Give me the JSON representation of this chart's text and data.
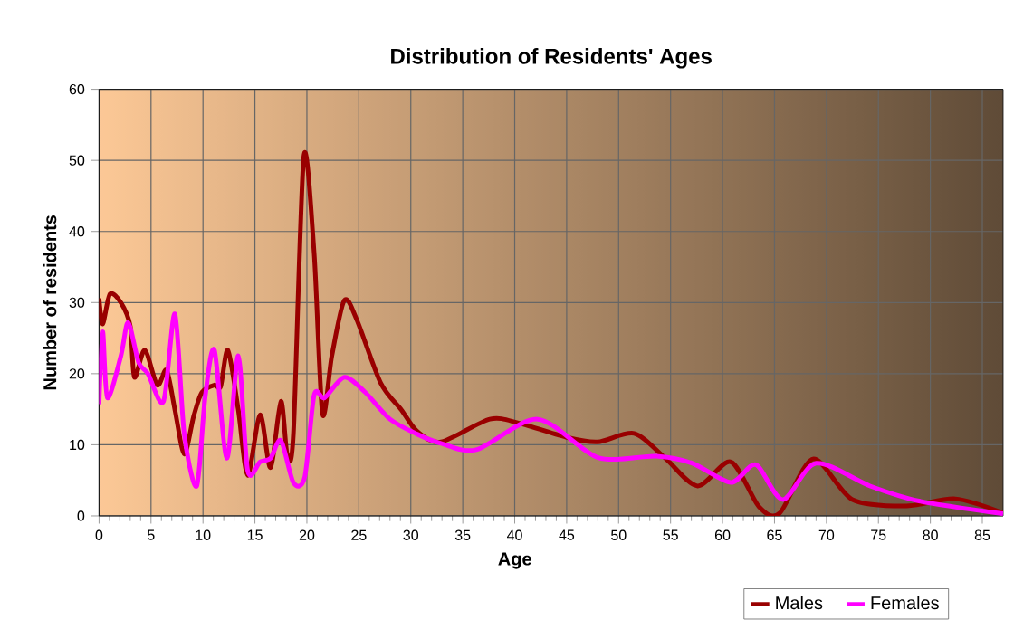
{
  "chart_data": {
    "type": "line",
    "title": "Distribution of Residents' Ages",
    "xlabel": "Age",
    "ylabel": "Number of residents",
    "xlim": [
      0,
      87
    ],
    "ylim": [
      0,
      60
    ],
    "xticks": [
      0,
      5,
      10,
      15,
      20,
      25,
      30,
      35,
      40,
      45,
      50,
      55,
      60,
      65,
      70,
      75,
      80,
      85
    ],
    "yticks": [
      0,
      10,
      20,
      30,
      40,
      50,
      60
    ],
    "grid": true,
    "legend": "bottom right",
    "marker": "none",
    "line_style": "solid",
    "series": [
      {
        "name": "Males",
        "color": "#990000",
        "x": [
          0,
          0.35,
          1.05,
          2.1,
          3.0,
          3.4,
          4.4,
          5.6,
          6.5,
          7.3,
          8.2,
          9.1,
          9.9,
          11.1,
          11.7,
          12.4,
          13.4,
          14.3,
          15.5,
          16.5,
          17.5,
          18.1,
          18.7,
          19.7,
          20.7,
          21.5,
          22.4,
          23.6,
          24.8,
          27.1,
          29.1,
          30.6,
          32.9,
          37.6,
          40.5,
          45.1,
          48,
          51.5,
          54.5,
          57.6,
          60.8,
          63.5,
          65.5,
          68.7,
          72.5,
          77.7,
          82.4,
          87
        ],
        "values": [
          30.6,
          27,
          31.2,
          30,
          26.7,
          19.5,
          23.3,
          18.4,
          20.5,
          14.9,
          8.7,
          14,
          17.4,
          18.4,
          18.2,
          23.3,
          14.9,
          5.7,
          14.2,
          6.8,
          16.1,
          8.7,
          11.5,
          50.5,
          36.9,
          14.4,
          22.5,
          30.3,
          27.6,
          18.7,
          14.9,
          11.9,
          10.4,
          13.6,
          13,
          11,
          10.4,
          11.6,
          8.1,
          4.2,
          7.6,
          1.3,
          0.4,
          8,
          2.3,
          1.4,
          2.4,
          0.4
        ]
      },
      {
        "name": "Females",
        "color": "#ff00ff",
        "x": [
          0,
          0.35,
          0.8,
          2.1,
          2.8,
          3.8,
          4.7,
          6.2,
          7.3,
          8.2,
          9.4,
          10.2,
          11.1,
          12.3,
          13.4,
          14.3,
          15.5,
          16.5,
          17.5,
          18.7,
          19.8,
          20.7,
          21.7,
          23.6,
          25.6,
          28,
          30.6,
          32.9,
          36.3,
          42.2,
          48,
          53.6,
          57.1,
          60.8,
          63.2,
          65.8,
          69,
          74.2,
          78.9,
          87
        ],
        "values": [
          15.7,
          25.9,
          16.6,
          22.5,
          27.2,
          21.6,
          20,
          16.1,
          28.4,
          11.5,
          4.2,
          16.6,
          23.3,
          8.1,
          22.5,
          6.4,
          7.6,
          8.1,
          10.6,
          4.7,
          5.5,
          17,
          16.6,
          19.5,
          17.4,
          13.6,
          11.5,
          10.2,
          9.3,
          13.6,
          8.2,
          8.4,
          7.4,
          4.7,
          7.2,
          2.3,
          7.4,
          4.2,
          2.1,
          0.3
        ]
      }
    ]
  }
}
